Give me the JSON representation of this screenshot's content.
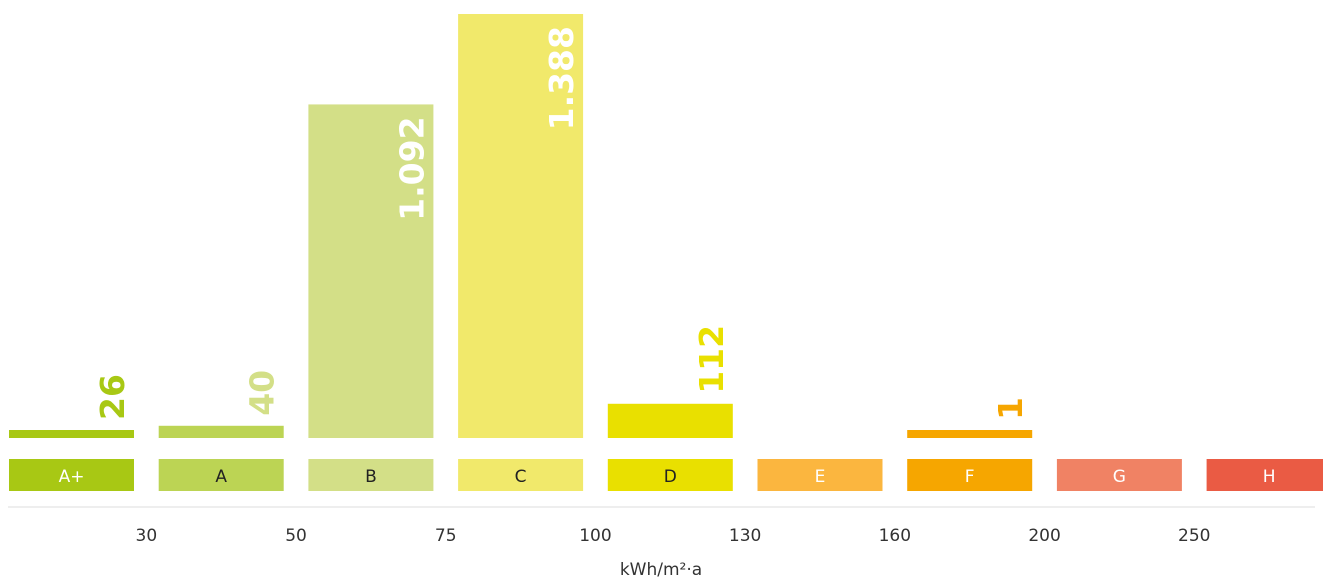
{
  "chart_data": {
    "type": "bar",
    "categories": [
      "A+",
      "A",
      "B",
      "C",
      "D",
      "E",
      "F",
      "G",
      "H"
    ],
    "values": [
      26,
      40,
      1092,
      1388,
      112,
      0,
      1,
      0,
      0
    ],
    "value_labels": [
      "26",
      "40",
      "1.092",
      "1.388",
      "112",
      "",
      "1",
      "",
      ""
    ],
    "category_colors": [
      "#a8c814",
      "#bcd454",
      "#d3df87",
      "#f1e96b",
      "#e9e000",
      "#fbb63f",
      "#f6a600",
      "#f08264",
      "#ea5b44"
    ],
    "label_text_colors": [
      "#ffffff",
      "#222222",
      "#222222",
      "#222222",
      "#222222",
      "#ffffff",
      "#ffffff",
      "#ffffff",
      "#ffffff"
    ],
    "value_label_colors": [
      "#a8c814",
      "#d3df87",
      "#ffffff",
      "#ffffff",
      "#e9e000",
      "",
      "#f6a600",
      "",
      ""
    ],
    "boundary_ticks": [
      "30",
      "50",
      "75",
      "100",
      "130",
      "160",
      "200",
      "250"
    ],
    "xlabel": "kWh/m²·a",
    "ylabel": "",
    "ylim": [
      0,
      1388
    ],
    "grid": false,
    "legend": "none"
  }
}
